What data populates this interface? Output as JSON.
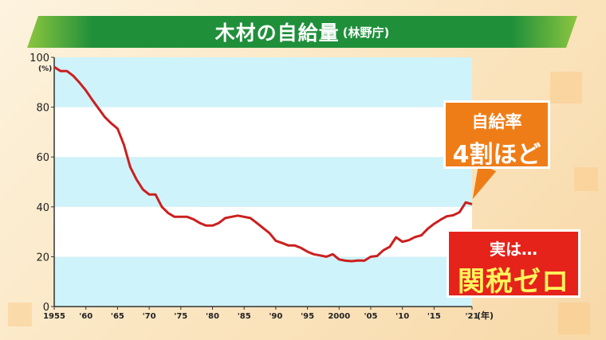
{
  "title": {
    "main": "木材の自給量",
    "source": "(林野庁)"
  },
  "callouts": {
    "rate_line1": "自給率",
    "rate_line2": "4割ほど",
    "tariff_line1": "実は…",
    "tariff_line2": "関税ゼロ"
  },
  "colors": {
    "line": "#cc1f1f",
    "band": "#cff3fa",
    "title_green": "#1f8f3a",
    "callout_orange": "#ef7d17",
    "callout_red": "#e5231b"
  },
  "chart_data": {
    "type": "line",
    "y_unit": "(%)",
    "x_unit": "(年)",
    "ylim": [
      0,
      100
    ],
    "xlim": [
      1955,
      2021
    ],
    "y_ticks": [
      {
        "value": 0,
        "label": "0"
      },
      {
        "value": 20,
        "label": "20"
      },
      {
        "value": 40,
        "label": "40"
      },
      {
        "value": 60,
        "label": "60"
      },
      {
        "value": 80,
        "label": "80"
      },
      {
        "value": 100,
        "label": "100"
      }
    ],
    "x_ticks": [
      {
        "value": 1955,
        "label": "1955"
      },
      {
        "value": 1960,
        "label": "'60"
      },
      {
        "value": 1965,
        "label": "'65"
      },
      {
        "value": 1970,
        "label": "'70"
      },
      {
        "value": 1975,
        "label": "'75"
      },
      {
        "value": 1980,
        "label": "'80"
      },
      {
        "value": 1985,
        "label": "'85"
      },
      {
        "value": 1990,
        "label": "'90"
      },
      {
        "value": 1995,
        "label": "'95"
      },
      {
        "value": 2000,
        "label": "2000"
      },
      {
        "value": 2005,
        "label": "'05"
      },
      {
        "value": 2010,
        "label": "'10"
      },
      {
        "value": 2015,
        "label": "'15"
      },
      {
        "value": 2021,
        "label": "'21"
      }
    ],
    "x": [
      1955,
      1956,
      1957,
      1958,
      1959,
      1960,
      1961,
      1962,
      1963,
      1964,
      1965,
      1966,
      1967,
      1968,
      1969,
      1970,
      1971,
      1972,
      1973,
      1974,
      1975,
      1976,
      1977,
      1978,
      1979,
      1980,
      1981,
      1982,
      1983,
      1984,
      1985,
      1986,
      1987,
      1988,
      1989,
      1990,
      1991,
      1992,
      1993,
      1994,
      1995,
      1996,
      1997,
      1998,
      1999,
      2000,
      2001,
      2002,
      2003,
      2004,
      2005,
      2006,
      2007,
      2008,
      2009,
      2010,
      2011,
      2012,
      2013,
      2014,
      2015,
      2016,
      2017,
      2018,
      2019,
      2020,
      2021
    ],
    "values": [
      96.1,
      94.5,
      94.5,
      92.6,
      89.8,
      86.7,
      83.0,
      79.5,
      76.0,
      73.5,
      71.4,
      65.0,
      56.0,
      51.0,
      47.0,
      45.0,
      45.0,
      40.0,
      37.5,
      36.0,
      36.0,
      36.0,
      35.0,
      33.5,
      32.5,
      32.5,
      33.5,
      35.5,
      36.0,
      36.5,
      36.0,
      35.5,
      33.5,
      31.5,
      29.5,
      26.4,
      25.5,
      24.5,
      24.5,
      23.5,
      22.0,
      21.0,
      20.5,
      20.0,
      21.0,
      18.9,
      18.4,
      18.2,
      18.5,
      18.4,
      20.0,
      20.3,
      22.6,
      24.0,
      27.8,
      26.0,
      26.6,
      27.9,
      28.6,
      31.2,
      33.2,
      34.8,
      36.2,
      36.6,
      37.8,
      41.8,
      41.1
    ]
  }
}
